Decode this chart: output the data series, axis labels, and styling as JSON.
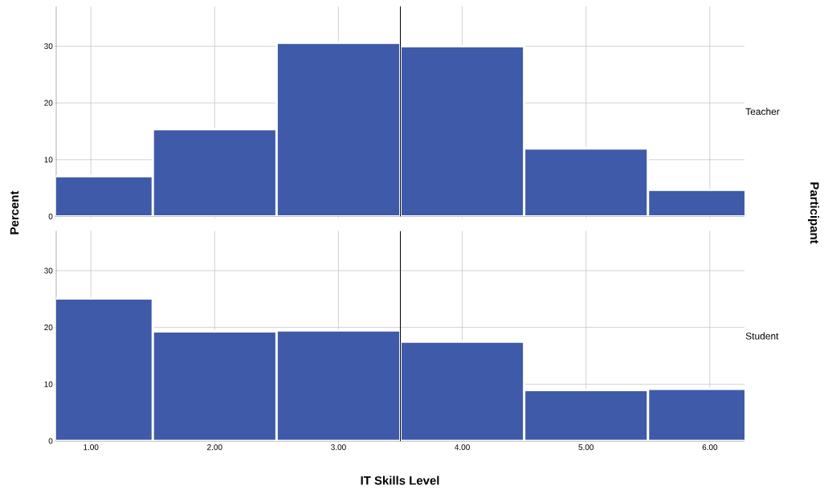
{
  "chart_data": [
    {
      "type": "histogram",
      "ylabel": "Percent",
      "y2label": "Participant",
      "annotations": [
        "Teacher"
      ],
      "bins": [
        0.5,
        1.5,
        2.5,
        3.5,
        4.5,
        5.5,
        6.5
      ],
      "values": [
        7.1,
        15.4,
        30.6,
        30.0,
        12.0,
        4.7
      ],
      "color": "#3f5aa8",
      "xlim": [
        0.72,
        6.28
      ],
      "ylim": [
        0,
        37
      ],
      "xticks": [
        1,
        2,
        3,
        4,
        5,
        6
      ],
      "yticks": [
        0,
        10,
        20,
        30
      ],
      "grid": true,
      "tick_labels": "y",
      "ref_lines": [
        {
          "axis": "x",
          "value": 3.5,
          "color": "#000000"
        }
      ]
    },
    {
      "type": "histogram",
      "xlabel": "IT Skills Level",
      "annotations": [
        "Student"
      ],
      "bins": [
        0.5,
        1.5,
        2.5,
        3.5,
        4.5,
        5.5,
        6.5
      ],
      "values": [
        25.1,
        19.3,
        19.5,
        17.5,
        9.0,
        9.2
      ],
      "color": "#3f5aa8",
      "xlim": [
        0.72,
        6.28
      ],
      "ylim": [
        0,
        37
      ],
      "xticks": [
        {
          "value": 1,
          "label": "1.00"
        },
        {
          "value": 2,
          "label": "2.00"
        },
        {
          "value": 3,
          "label": "3.00"
        },
        {
          "value": 4,
          "label": "4.00"
        },
        {
          "value": 5,
          "label": "5.00"
        },
        {
          "value": 6,
          "label": "6.00"
        }
      ],
      "yticks": [
        0,
        10,
        20,
        30
      ],
      "grid": true,
      "ref_lines": [
        {
          "axis": "x",
          "value": 3.5,
          "color": "#000000"
        }
      ]
    }
  ]
}
